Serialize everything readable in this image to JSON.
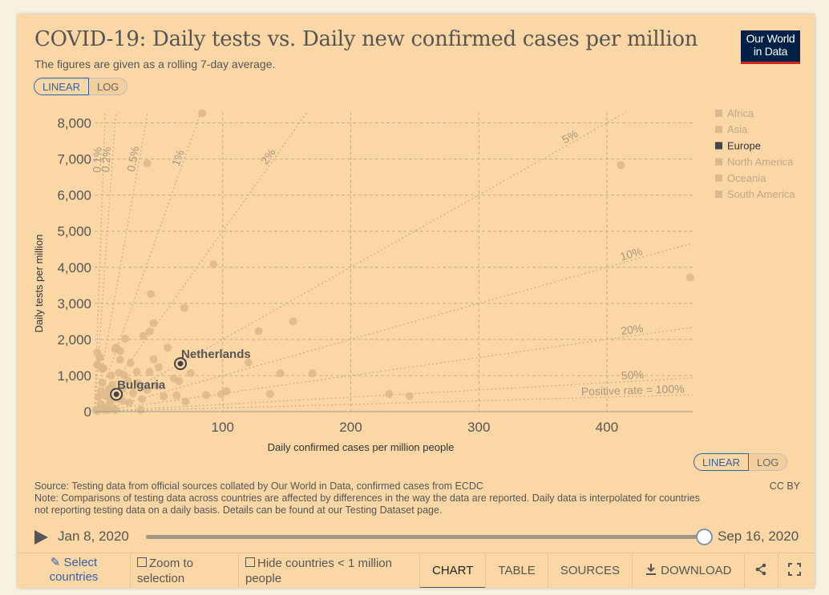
{
  "title": "COVID-19: Daily tests vs. Daily new confirmed cases per million",
  "subtitle": "The figures are given as a rolling 7-day average.",
  "logo": {
    "line1": "Our World",
    "line2": "in Data"
  },
  "scale_toggle": {
    "linear": "LINEAR",
    "log": "LOG"
  },
  "colors": {
    "background": "#fbd7a6",
    "point": "#dcb98a",
    "highlight": "#555555",
    "accent": "#3360a9",
    "logo_bg": "#002147",
    "logo_bar": "#ce261e"
  },
  "chart_data": {
    "type": "scatter",
    "xlabel": "Daily confirmed cases per million people",
    "ylabel": "Daily tests per million",
    "xlim": [
      0,
      467
    ],
    "ylim": [
      0,
      8300
    ],
    "xticks": [
      100,
      200,
      300,
      400
    ],
    "xtick_labels": [
      "100",
      "200",
      "300",
      "400"
    ],
    "yticks": [
      0,
      1000,
      2000,
      3000,
      4000,
      5000,
      6000,
      7000,
      8000
    ],
    "ytick_labels": [
      "0",
      "1,000",
      "2,000",
      "3,000",
      "4,000",
      "5,000",
      "6,000",
      "7,000",
      "8,000"
    ],
    "positive_rate_lines": [
      {
        "rate": 0.001,
        "label": "0.1%"
      },
      {
        "rate": 0.002,
        "label": "0.2%"
      },
      {
        "rate": 0.005,
        "label": "0.5%"
      },
      {
        "rate": 0.01,
        "label": "1%"
      },
      {
        "rate": 0.02,
        "label": "2%"
      },
      {
        "rate": 0.05,
        "label": "5%"
      },
      {
        "rate": 0.1,
        "label": "10%"
      },
      {
        "rate": 0.2,
        "label": "20%"
      },
      {
        "rate": 0.5,
        "label": "50%"
      },
      {
        "rate": 1.0,
        "label": "Positive rate = 100%"
      }
    ],
    "legend": [
      {
        "name": "Africa",
        "active": false
      },
      {
        "name": "Asia",
        "active": false
      },
      {
        "name": "Europe",
        "active": true
      },
      {
        "name": "North America",
        "active": false
      },
      {
        "name": "Oceania",
        "active": false
      },
      {
        "name": "South America",
        "active": false
      }
    ],
    "highlighted": [
      {
        "name": "Netherlands",
        "x": 67,
        "y": 1330
      },
      {
        "name": "Bulgaria",
        "x": 17,
        "y": 480
      }
    ],
    "points": [
      [
        84,
        8270
      ],
      [
        41,
        6880
      ],
      [
        411,
        6830
      ],
      [
        93,
        4080
      ],
      [
        465,
        3720
      ],
      [
        44,
        3260
      ],
      [
        70,
        2880
      ],
      [
        46,
        2450
      ],
      [
        155,
        2500
      ],
      [
        43,
        2220
      ],
      [
        38,
        2100
      ],
      [
        128,
        2230
      ],
      [
        24,
        2020
      ],
      [
        57,
        1770
      ],
      [
        4,
        1500
      ],
      [
        16,
        1730
      ],
      [
        20,
        1680
      ],
      [
        17,
        1780
      ],
      [
        7,
        1200
      ],
      [
        28,
        1350
      ],
      [
        20,
        1440
      ],
      [
        33,
        1110
      ],
      [
        46,
        1450
      ],
      [
        43,
        1100
      ],
      [
        50,
        1230
      ],
      [
        75,
        1070
      ],
      [
        120,
        1360
      ],
      [
        145,
        1060
      ],
      [
        170,
        1060
      ],
      [
        62,
        920
      ],
      [
        19,
        1080
      ],
      [
        23,
        1010
      ],
      [
        13,
        1000
      ],
      [
        34,
        790
      ],
      [
        26,
        850
      ],
      [
        48,
        720
      ],
      [
        66,
        840
      ],
      [
        22,
        630
      ],
      [
        30,
        510
      ],
      [
        41,
        600
      ],
      [
        37,
        350
      ],
      [
        64,
        450
      ],
      [
        54,
        420
      ],
      [
        71,
        280
      ],
      [
        14,
        740
      ],
      [
        11,
        620
      ],
      [
        9,
        430
      ],
      [
        12,
        260
      ],
      [
        22,
        300
      ],
      [
        27,
        250
      ],
      [
        36,
        50
      ],
      [
        103,
        570
      ],
      [
        99,
        490
      ],
      [
        87,
        460
      ],
      [
        137,
        490
      ],
      [
        230,
        490
      ],
      [
        246,
        430
      ],
      [
        6,
        800
      ],
      [
        3,
        400
      ],
      [
        5,
        560
      ],
      [
        5,
        200
      ],
      [
        4,
        100
      ],
      [
        7,
        70
      ],
      [
        9,
        110
      ],
      [
        2,
        1300
      ],
      [
        2,
        1640
      ],
      [
        4,
        1520
      ],
      [
        3,
        1280
      ],
      [
        6,
        1180
      ],
      [
        1,
        40
      ],
      [
        2,
        20
      ],
      [
        3,
        60
      ],
      [
        8,
        40
      ],
      [
        11,
        50
      ],
      [
        15,
        90
      ],
      [
        13,
        330
      ],
      [
        18,
        360
      ],
      [
        16,
        50
      ]
    ]
  },
  "source_line1": "Source: Testing data from official sources collated by Our World in Data, confirmed cases from ECDC",
  "source_line2": "Note: Comparisons of testing data across countries are affected by differences in the way the data are reported. Daily data is interpolated for countries",
  "source_line3": "not reporting testing data on a daily basis. Details can be found at our Testing Dataset page.",
  "license": "CC BY",
  "timeline": {
    "start": "Jan 8, 2020",
    "end": "Sep 16, 2020",
    "progress": 1.0
  },
  "footer": {
    "select_line1": "Select",
    "select_line2": "countries",
    "zoom_line1": "Zoom to",
    "zoom_line2": "selection",
    "hide_line1": "Hide countries < 1 million",
    "hide_line2": "people",
    "tabs": [
      "CHART",
      "TABLE",
      "SOURCES"
    ],
    "download": "DOWNLOAD"
  }
}
